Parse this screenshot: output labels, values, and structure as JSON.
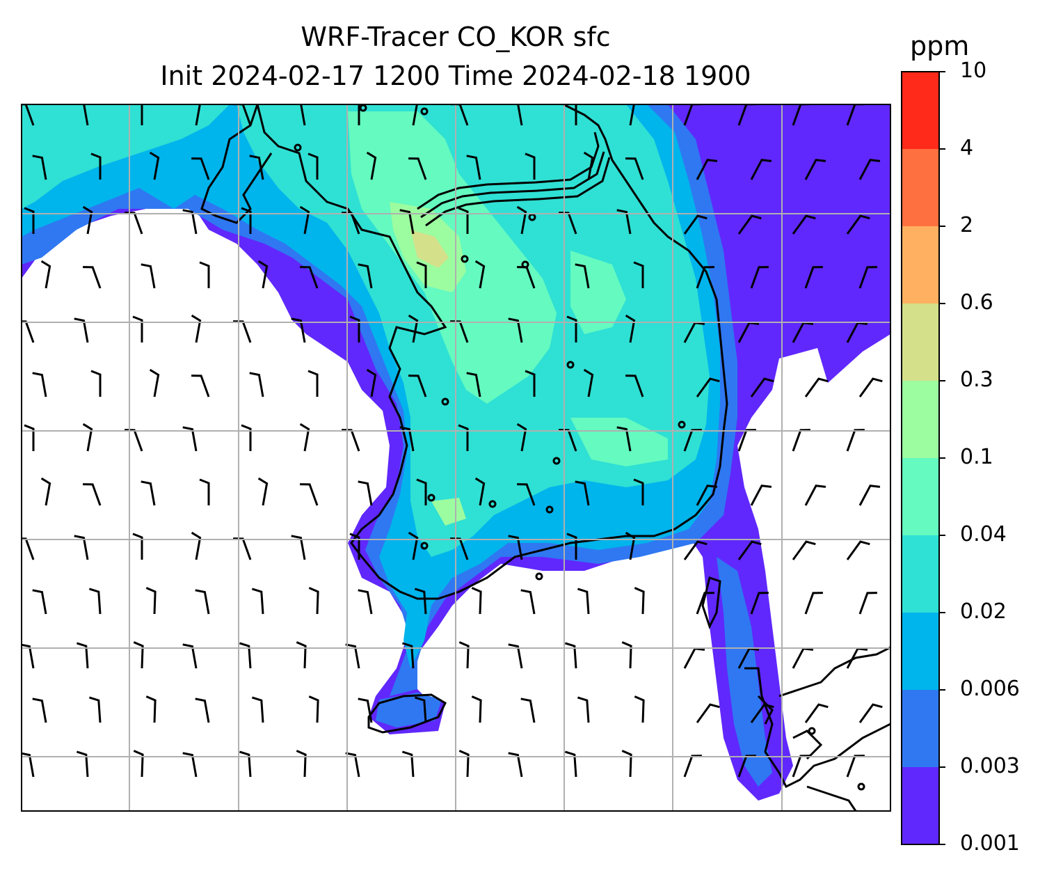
{
  "title": "WRF-Tracer CO_KOR sfc",
  "subtitle": "Init 2024-02-17 1200 Time 2024-02-18 1900",
  "colorbar": {
    "unit": "ppm",
    "levels": [
      "10",
      "4",
      "2",
      "0.6",
      "0.3",
      "0.1",
      "0.04",
      "0.02",
      "0.006",
      "0.003",
      "0.001"
    ],
    "colors": [
      "#ff2a1a",
      "#ff7040",
      "#ffb060",
      "#d4e08a",
      "#9cfca0",
      "#64fac0",
      "#2fe0d4",
      "#00b4ec",
      "#2f78f2",
      "#6028fc"
    ]
  },
  "palette": {
    "ocean_no_data": "#ffffff",
    "low": "#6028fc",
    "blue": "#2f78f2",
    "sky": "#00b4ec",
    "cyan": "#2fe0d4",
    "mint": "#64fac0",
    "green": "#9cfca0",
    "olive": "#d4e08a",
    "coast": "#000000",
    "grid": "#b0b0b0"
  }
}
